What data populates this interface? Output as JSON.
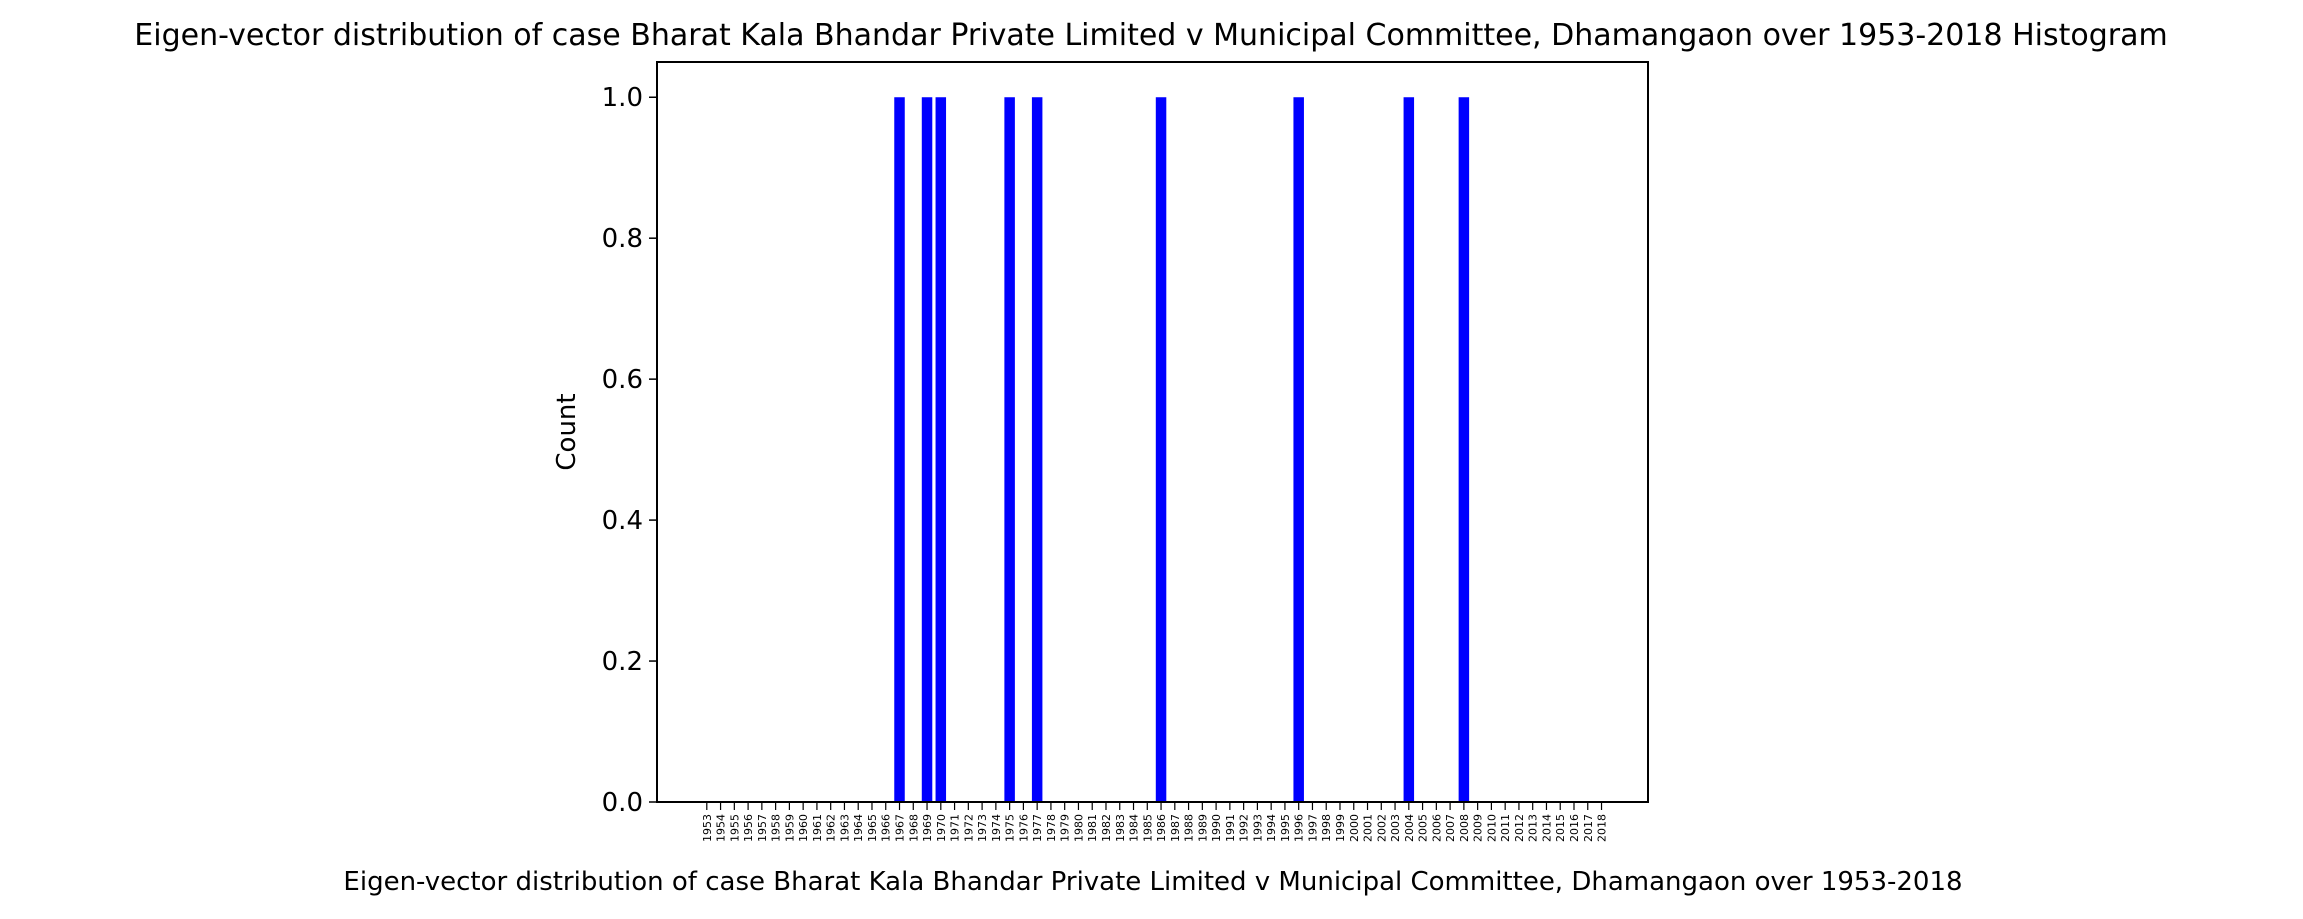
{
  "chart_data": {
    "type": "bar",
    "title": "Eigen-vector distribution of case Bharat Kala Bhandar Private Limited v Municipal Committee, Dhamangaon over 1953-2018 Histogram",
    "xlabel": "Eigen-vector distribution of case Bharat Kala Bhandar Private Limited v Municipal Committee, Dhamangaon over 1953-2018",
    "ylabel": "Count",
    "ylim": [
      0,
      1.05
    ],
    "yticks": [
      "0.0",
      "0.2",
      "0.4",
      "0.6",
      "0.8",
      "1.0"
    ],
    "categories": [
      "1953",
      "1954",
      "1955",
      "1956",
      "1957",
      "1958",
      "1959",
      "1960",
      "1961",
      "1962",
      "1963",
      "1964",
      "1965",
      "1966",
      "1967",
      "1968",
      "1969",
      "1970",
      "1971",
      "1972",
      "1973",
      "1974",
      "1975",
      "1976",
      "1977",
      "1978",
      "1979",
      "1980",
      "1981",
      "1982",
      "1983",
      "1984",
      "1985",
      "1986",
      "1987",
      "1988",
      "1989",
      "1990",
      "1991",
      "1992",
      "1993",
      "1994",
      "1995",
      "1996",
      "1997",
      "1998",
      "1999",
      "2000",
      "2001",
      "2002",
      "2003",
      "2004",
      "2005",
      "2006",
      "2007",
      "2008",
      "2009",
      "2010",
      "2011",
      "2012",
      "2013",
      "2014",
      "2015",
      "2016",
      "2017",
      "2018"
    ],
    "values": [
      0,
      0,
      0,
      0,
      0,
      0,
      0,
      0,
      0,
      0,
      0,
      0,
      0,
      0,
      1,
      0,
      1,
      1,
      0,
      0,
      0,
      0,
      1,
      0,
      1,
      0,
      0,
      0,
      0,
      0,
      0,
      0,
      0,
      1,
      0,
      0,
      0,
      0,
      0,
      0,
      0,
      0,
      0,
      1,
      0,
      0,
      0,
      0,
      0,
      0,
      0,
      1,
      0,
      0,
      0,
      1,
      0,
      0,
      0,
      0,
      0,
      0,
      0,
      0,
      0,
      0
    ],
    "bar_color": "#0000ff",
    "grid": false,
    "legend": "none"
  }
}
